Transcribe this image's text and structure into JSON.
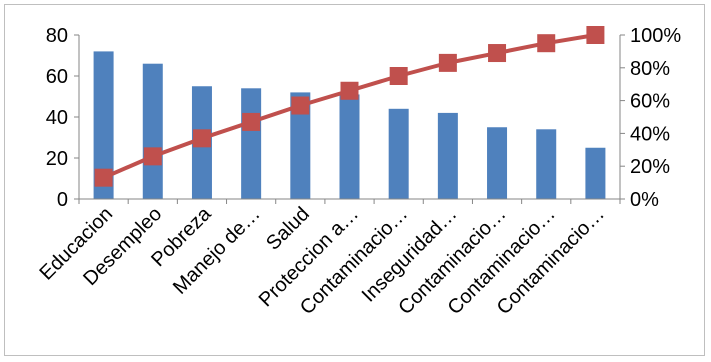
{
  "chart_data": {
    "type": "bar",
    "categories": [
      "Educacion",
      "Desempleo",
      "Pobreza",
      "Manejo de…",
      "Salud",
      "Proteccion a…",
      "Contaminacio…",
      "Inseguridad…",
      "Contaminacio…",
      "Contaminacio…",
      "Contaminacio…"
    ],
    "series": [
      {
        "type": "bar",
        "values": [
          72,
          66,
          55,
          54,
          52,
          51,
          44,
          42,
          35,
          34,
          25
        ],
        "color": "#4f81bd",
        "axis": "left"
      },
      {
        "type": "line",
        "values": [
          13,
          26,
          37,
          47,
          57,
          66,
          75,
          83,
          89,
          95,
          100
        ],
        "color": "#c0504d",
        "axis": "right",
        "marker": "square"
      }
    ],
    "left_axis": {
      "ylim": [
        0,
        80
      ],
      "ticks": [
        "0",
        "20",
        "40",
        "60",
        "80"
      ]
    },
    "right_axis": {
      "ylim": [
        0,
        100
      ],
      "ticks": [
        "0%",
        "20%",
        "40%",
        "60%",
        "80%",
        "100%"
      ]
    },
    "grid": false,
    "legend": "none",
    "title": "",
    "xlabel": "",
    "ylabel": ""
  }
}
